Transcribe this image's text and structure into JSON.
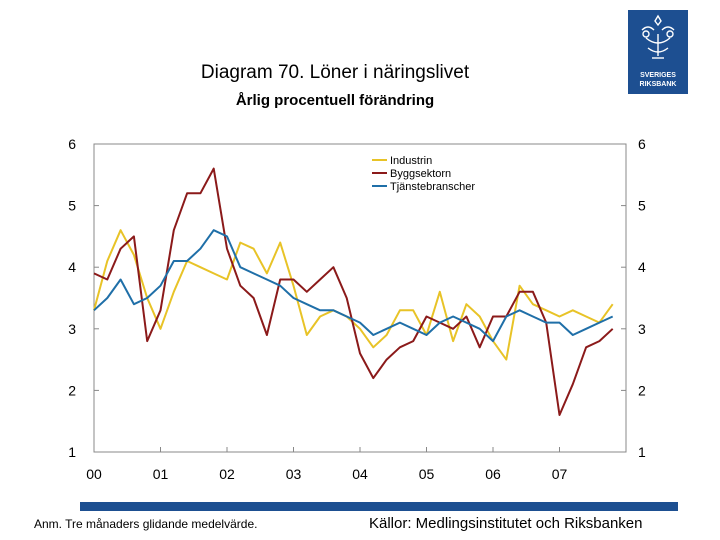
{
  "title": "Diagram 70. Löner i näringslivet",
  "subtitle": "Årlig procentuell förändring",
  "logo": {
    "line1": "SVERIGES",
    "line2": "RIKSBANK"
  },
  "footer": {
    "note": "Anm. Tre månaders glidande medelvärde.",
    "source": "Källor: Medlingsinstitutet och Riksbanken"
  },
  "colors": {
    "brand": "#1d4f91",
    "industrin": "#e8c327",
    "byggsektorn": "#8b1a1a",
    "tjanste": "#1f6fa8"
  },
  "chart_data": {
    "type": "line",
    "title": "Diagram 70. Löner i näringslivet",
    "subtitle": "Årlig procentuell förändring",
    "ylim": [
      1,
      6
    ],
    "yticks": [
      1,
      2,
      3,
      4,
      5,
      6
    ],
    "xlim": [
      2000,
      2008
    ],
    "xticks": [
      "00",
      "01",
      "02",
      "03",
      "04",
      "05",
      "06",
      "07"
    ],
    "grid": false,
    "legend": "top-center",
    "series": [
      {
        "name": "Industrin",
        "color": "#e8c327",
        "x": [
          2000.0,
          2000.2,
          2000.4,
          2000.6,
          2000.8,
          2001.0,
          2001.2,
          2001.4,
          2001.6,
          2001.8,
          2002.0,
          2002.2,
          2002.4,
          2002.6,
          2002.8,
          2003.0,
          2003.2,
          2003.4,
          2003.6,
          2003.8,
          2004.0,
          2004.2,
          2004.4,
          2004.6,
          2004.8,
          2005.0,
          2005.2,
          2005.4,
          2005.6,
          2005.8,
          2006.0,
          2006.2,
          2006.4,
          2006.6,
          2006.8,
          2007.0,
          2007.2,
          2007.4,
          2007.6,
          2007.8
        ],
        "values": [
          3.3,
          4.1,
          4.6,
          4.2,
          3.5,
          3.0,
          3.6,
          4.1,
          4.0,
          3.9,
          3.8,
          4.4,
          4.3,
          3.9,
          4.4,
          3.7,
          2.9,
          3.2,
          3.3,
          3.2,
          3.0,
          2.7,
          2.9,
          3.3,
          3.3,
          2.9,
          3.6,
          2.8,
          3.4,
          3.2,
          2.8,
          2.5,
          3.7,
          3.4,
          3.3,
          3.2,
          3.3,
          3.2,
          3.1,
          3.4
        ]
      },
      {
        "name": "Byggsektorn",
        "color": "#8b1a1a",
        "x": [
          2000.0,
          2000.2,
          2000.4,
          2000.6,
          2000.8,
          2001.0,
          2001.2,
          2001.4,
          2001.6,
          2001.8,
          2002.0,
          2002.2,
          2002.4,
          2002.6,
          2002.8,
          2003.0,
          2003.2,
          2003.4,
          2003.6,
          2003.8,
          2004.0,
          2004.2,
          2004.4,
          2004.6,
          2004.8,
          2005.0,
          2005.2,
          2005.4,
          2005.6,
          2005.8,
          2006.0,
          2006.2,
          2006.4,
          2006.6,
          2006.8,
          2007.0,
          2007.2,
          2007.4,
          2007.6,
          2007.8
        ],
        "values": [
          3.9,
          3.8,
          4.3,
          4.5,
          2.8,
          3.3,
          4.6,
          5.2,
          5.2,
          5.6,
          4.3,
          3.7,
          3.5,
          2.9,
          3.8,
          3.8,
          3.6,
          3.8,
          4.0,
          3.5,
          2.6,
          2.2,
          2.5,
          2.7,
          2.8,
          3.2,
          3.1,
          3.0,
          3.2,
          2.7,
          3.2,
          3.2,
          3.6,
          3.6,
          3.1,
          1.6,
          2.1,
          2.7,
          2.8,
          3.0
        ]
      },
      {
        "name": "Tjänstebranscher",
        "color": "#1f6fa8",
        "x": [
          2000.0,
          2000.2,
          2000.4,
          2000.6,
          2000.8,
          2001.0,
          2001.2,
          2001.4,
          2001.6,
          2001.8,
          2002.0,
          2002.2,
          2002.4,
          2002.6,
          2002.8,
          2003.0,
          2003.2,
          2003.4,
          2003.6,
          2003.8,
          2004.0,
          2004.2,
          2004.4,
          2004.6,
          2004.8,
          2005.0,
          2005.2,
          2005.4,
          2005.6,
          2005.8,
          2006.0,
          2006.2,
          2006.4,
          2006.6,
          2006.8,
          2007.0,
          2007.2,
          2007.4,
          2007.6,
          2007.8
        ],
        "values": [
          3.3,
          3.5,
          3.8,
          3.4,
          3.5,
          3.7,
          4.1,
          4.1,
          4.3,
          4.6,
          4.5,
          4.0,
          3.9,
          3.8,
          3.7,
          3.5,
          3.4,
          3.3,
          3.3,
          3.2,
          3.1,
          2.9,
          3.0,
          3.1,
          3.0,
          2.9,
          3.1,
          3.2,
          3.1,
          3.0,
          2.8,
          3.2,
          3.3,
          3.2,
          3.1,
          3.1,
          2.9,
          3.0,
          3.1,
          3.2
        ]
      }
    ]
  }
}
